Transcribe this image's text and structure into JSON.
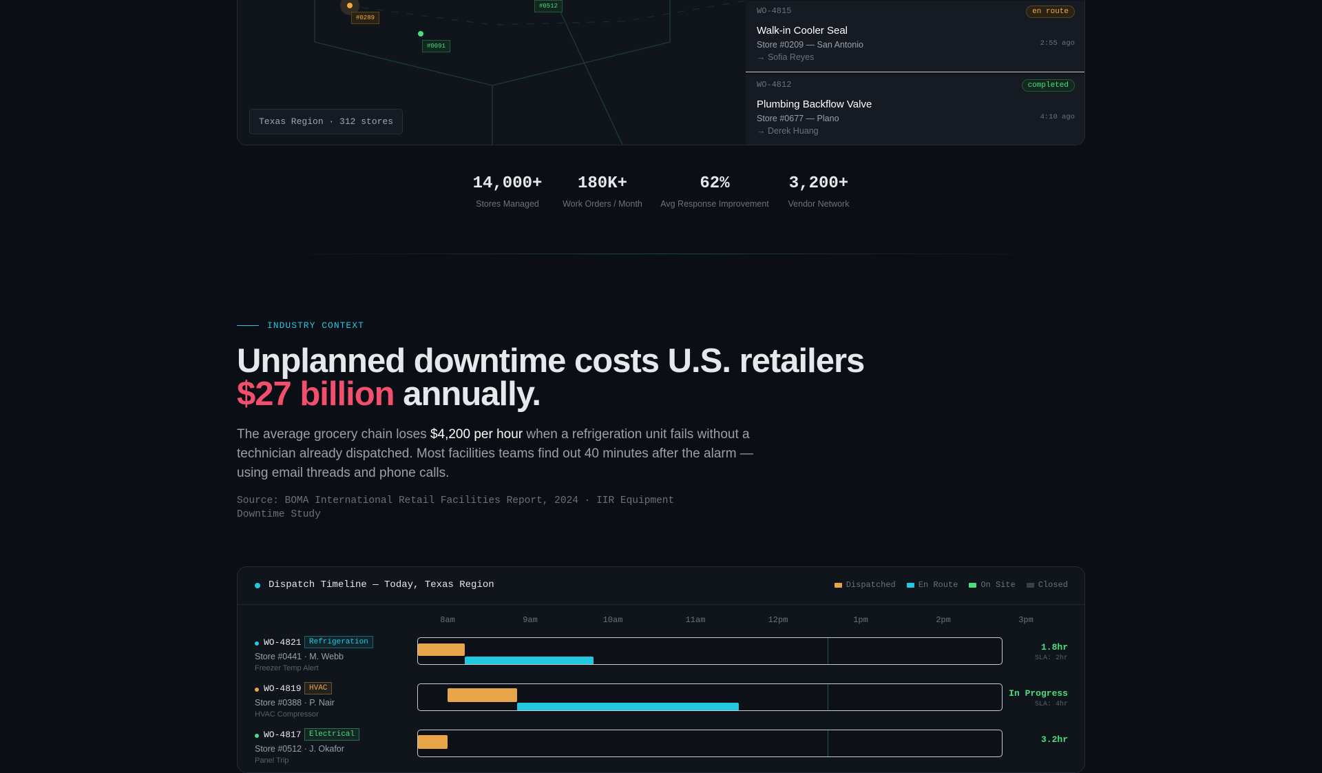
{
  "map": {
    "markers": [
      {
        "label": "#0289",
        "color": "#f0a84a"
      },
      {
        "label": "#0091",
        "color": "#4ade80"
      },
      {
        "label": "#0512",
        "color": "#4ade80"
      }
    ],
    "region": "Texas Region · 312 stores"
  },
  "work_orders": [
    {
      "id": "WO-4815",
      "status": "en route",
      "title": "Walk-in Cooler Seal",
      "store": "Store #0209 — San Antonio",
      "assignee": "→ Sofia Reyes",
      "time": "2:55 ago"
    },
    {
      "id": "WO-4812",
      "status": "completed",
      "title": "Plumbing Backflow Valve",
      "store": "Store #0677 — Plano",
      "assignee": "→ Derek Huang",
      "time": "4:10 ago"
    }
  ],
  "stats": [
    {
      "value": "14,000+",
      "label": "Stores Managed"
    },
    {
      "value": "180K+",
      "label": "Work Orders / Month"
    },
    {
      "value": "62%",
      "label": "Avg Response Improvement"
    },
    {
      "value": "3,200+",
      "label": "Vendor Network"
    }
  ],
  "context": {
    "eyebrow": "INDUSTRY CONTEXT",
    "headline": {
      "start": "Unplanned downtime costs U.S. retailers",
      "highlight": "$27 billion",
      "end": "annually."
    },
    "body": {
      "start": "The average grocery chain loses ",
      "highlight": "$4,200 per hour",
      "end": " when a refrigeration unit fails without a technician already dispatched. Most facilities teams find out 40 minutes after the alarm — using email threads and phone calls."
    },
    "source": "Source: BOMA International Retail Facilities Report, 2024 · IIR Equipment Downtime Study"
  },
  "timeline": {
    "title": "Dispatch Timeline — Today, Texas Region",
    "legend": [
      {
        "name": "Dispatched",
        "color": "#e8a54a"
      },
      {
        "name": "En Route",
        "color": "#22c7e0"
      },
      {
        "name": "On Site",
        "color": "#4ade80"
      },
      {
        "name": "Closed",
        "color": "#3a404c"
      }
    ],
    "hours": [
      "8am",
      "9am",
      "10am",
      "11am",
      "12pm",
      "1pm",
      "2pm",
      "3pm"
    ],
    "rows": [
      {
        "id": "WO-4821",
        "tag": "Refrigeration",
        "store": "Store #0441 · M. Webb",
        "issue": "Freezer Temp Alert",
        "result": "1.8hr",
        "sla": "SLA: 2hr"
      },
      {
        "id": "WO-4819",
        "tag": "HVAC",
        "store": "Store #0388 · P. Nair",
        "issue": "HVAC Compressor",
        "result": "In Progress",
        "sla": "SLA: 4hr"
      },
      {
        "id": "WO-4817",
        "tag": "Electrical",
        "store": "Store #0512 · J. Okafor",
        "issue": "Panel Trip",
        "result": "3.2hr",
        "sla": ""
      }
    ]
  }
}
